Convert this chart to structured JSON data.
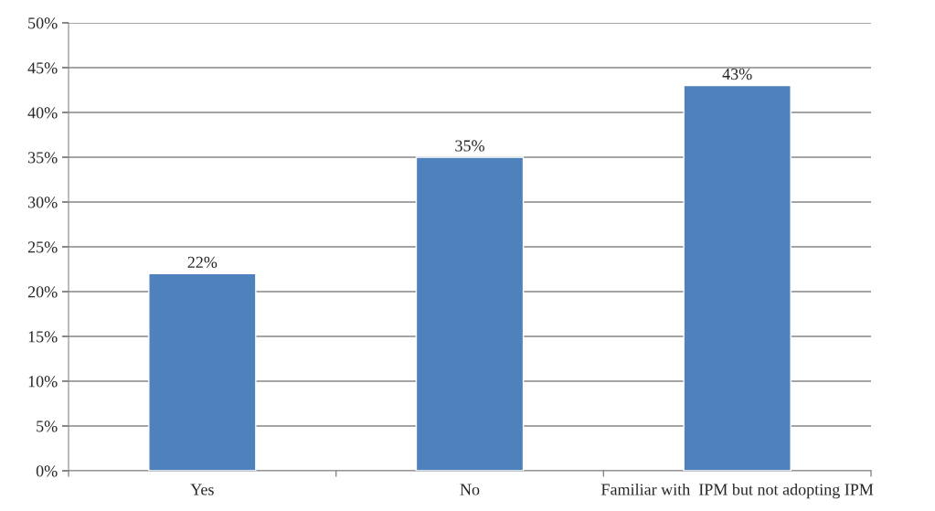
{
  "chart_data": {
    "type": "bar",
    "categories": [
      "Yes",
      "No",
      "Familiar with  IPM but not adopting IPM"
    ],
    "values": [
      22,
      35,
      43
    ],
    "value_labels": [
      "22%",
      "35%",
      "43%"
    ],
    "color": "#4f81bd",
    "ylim": [
      0,
      50
    ],
    "yticks": [
      {
        "value": 0,
        "label": "0%"
      },
      {
        "value": 5,
        "label": "5%"
      },
      {
        "value": 10,
        "label": "10%"
      },
      {
        "value": 15,
        "label": "15%"
      },
      {
        "value": 20,
        "label": "20%"
      },
      {
        "value": 25,
        "label": "25%"
      },
      {
        "value": 30,
        "label": "30%"
      },
      {
        "value": 35,
        "label": "35%"
      },
      {
        "value": 40,
        "label": "40%"
      },
      {
        "value": 45,
        "label": "45%"
      },
      {
        "value": 50,
        "label": "50%"
      }
    ],
    "grid": "y",
    "legend": false
  }
}
